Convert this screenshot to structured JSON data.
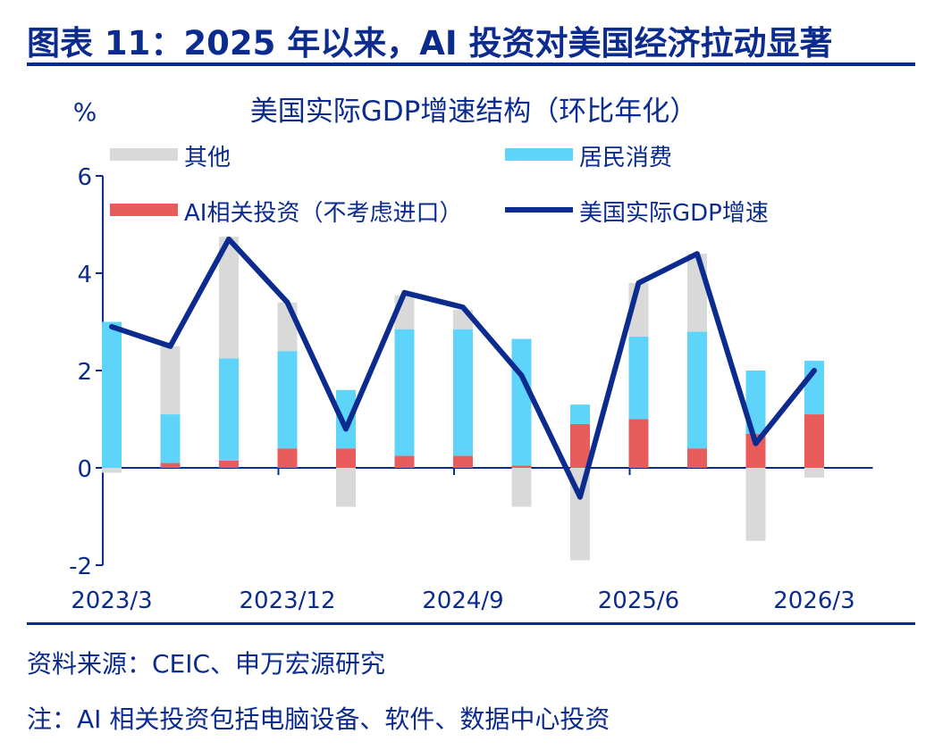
{
  "header": {
    "figure_title": "图表 11：2025 年以来，AI 投资对美国经济拉动显著",
    "source": "资料来源：CEIC、申万宏源研究",
    "note": "注：AI 相关投资包括电脑设备、软件、数据中心投资"
  },
  "chart_data": {
    "type": "bar",
    "title": "美国实际GDP增速结构（环比年化）",
    "ylabel": "%",
    "ylim": [
      -2,
      6
    ],
    "yticks": [
      "-2",
      "0",
      "2",
      "4",
      "6"
    ],
    "xtick_labels": [
      "2023/3",
      "2023/12",
      "2024/9",
      "2025/6",
      "2026/3"
    ],
    "grid": false,
    "legend_position": "top",
    "categories": [
      "2023Q1",
      "2023Q2",
      "2023Q3",
      "2023Q4",
      "2024Q1",
      "2024Q2",
      "2024Q3",
      "2024Q4",
      "2025Q1",
      "2025Q2",
      "2025Q3",
      "2025Q4",
      "2026Q1"
    ],
    "series": [
      {
        "name": "其他",
        "kind": "stacked-bar",
        "color": "#d9d9d9",
        "values": [
          -0.1,
          1.4,
          2.5,
          1.0,
          -0.8,
          0.7,
          0.4,
          -0.8,
          -1.9,
          1.1,
          1.6,
          -1.5,
          -0.2
        ]
      },
      {
        "name": "居民消费",
        "kind": "stacked-bar",
        "color": "#5fd4fb",
        "values": [
          3.0,
          1.0,
          2.1,
          2.0,
          1.2,
          2.6,
          2.6,
          2.6,
          0.4,
          1.7,
          2.4,
          1.3,
          1.1
        ]
      },
      {
        "name": "AI相关投资（不考虑进口）",
        "kind": "stacked-bar",
        "color": "#e85c5c",
        "values": [
          0.0,
          0.1,
          0.15,
          0.4,
          0.4,
          0.25,
          0.25,
          0.05,
          0.9,
          1.0,
          0.4,
          0.7,
          1.1
        ]
      },
      {
        "name": "美国实际GDP增速",
        "kind": "line",
        "color": "#0b2b8f",
        "values": [
          2.9,
          2.5,
          4.7,
          3.4,
          0.8,
          3.6,
          3.3,
          1.9,
          -0.6,
          3.8,
          4.4,
          0.5,
          2.0
        ]
      }
    ]
  }
}
